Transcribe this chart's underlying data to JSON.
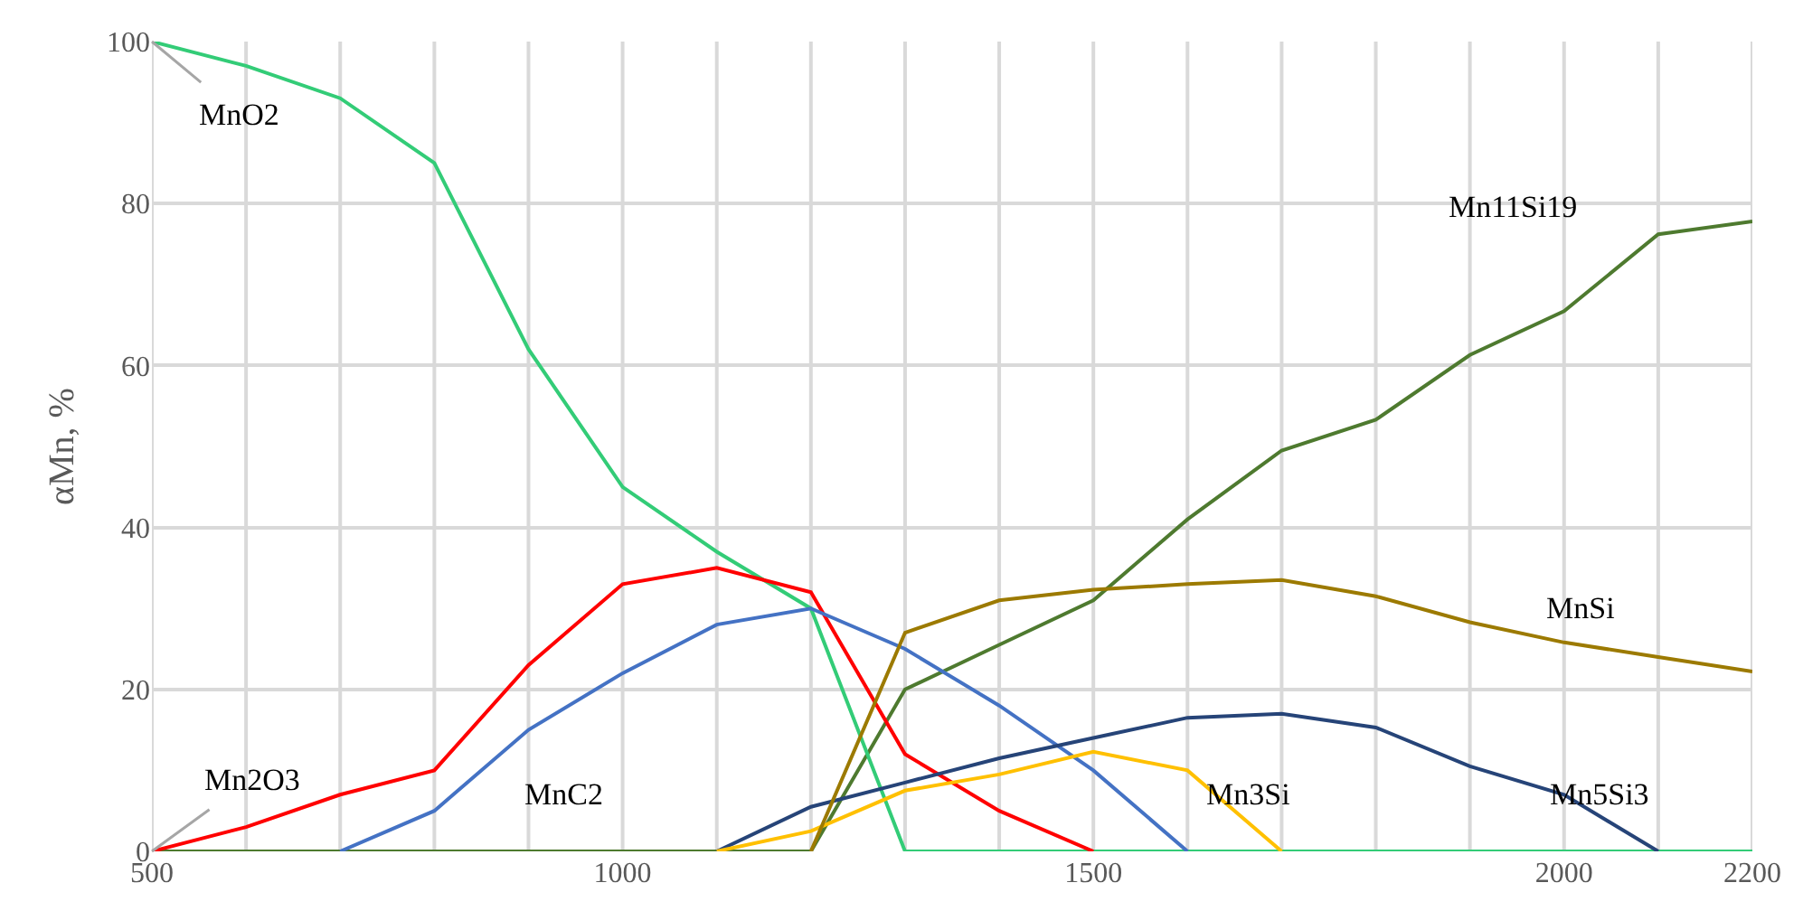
{
  "chart_data": {
    "type": "line",
    "ylabel": "αMn, %",
    "x": [
      500,
      600,
      700,
      800,
      900,
      1000,
      1100,
      1200,
      1300,
      1400,
      1500,
      1600,
      1700,
      1800,
      1900,
      2000,
      2100,
      2200
    ],
    "series": [
      {
        "color": "#4e7a2f",
        "values": [
          0,
          0,
          0,
          0,
          0,
          0,
          0,
          0,
          20,
          25.5,
          31,
          41,
          49.5,
          53.3,
          61.3,
          66.7,
          76.2,
          77.8
        ]
      },
      {
        "color": "#33cc77",
        "values": [
          100,
          97,
          93,
          85,
          62,
          45,
          37,
          30,
          0,
          0,
          0,
          0,
          0,
          0,
          0,
          0,
          0,
          0
        ]
      },
      {
        "color": "#ff0000",
        "values": [
          0,
          3,
          7,
          10,
          23,
          33,
          35,
          32,
          12,
          5,
          0,
          null,
          null,
          null,
          null,
          null,
          null,
          null
        ]
      },
      {
        "color": "#4472c4",
        "values": [
          null,
          null,
          0,
          5,
          15,
          22,
          28,
          30,
          25,
          18,
          10,
          0,
          null,
          null,
          null,
          null,
          null,
          null
        ]
      },
      {
        "color": "#264478",
        "values": [
          null,
          null,
          null,
          null,
          null,
          null,
          0,
          5.5,
          8.5,
          11.5,
          14,
          16.5,
          17,
          15.3,
          10.5,
          7,
          0,
          null
        ]
      },
      {
        "color": "#ffc000",
        "values": [
          null,
          null,
          null,
          null,
          null,
          null,
          0,
          2.5,
          7.5,
          9.5,
          12.3,
          10,
          0,
          null,
          null,
          null,
          null,
          null
        ]
      },
      {
        "color": "#9c7a00",
        "values": [
          null,
          null,
          null,
          null,
          null,
          null,
          null,
          0,
          27,
          31,
          32.3,
          33,
          33.5,
          31.5,
          28.3,
          25.8,
          24,
          22.2
        ]
      }
    ],
    "annotations": [
      {
        "text": "MnO2",
        "x": 500,
        "y": 100
      },
      {
        "text": "Mn2O3",
        "x": 500,
        "y": 0
      },
      "MnC2",
      "Mn3Si",
      "Mn5Si3",
      "MnSi",
      "Mn11Si19"
    ],
    "xlim": [
      500,
      2200
    ],
    "xticks": [
      500,
      1000,
      1500,
      2000,
      2200
    ],
    "ylim": [
      0,
      100
    ],
    "yticks": [
      0,
      20,
      40,
      60,
      80,
      100
    ],
    "grid": true,
    "marker": "none",
    "line_style": "solid"
  }
}
